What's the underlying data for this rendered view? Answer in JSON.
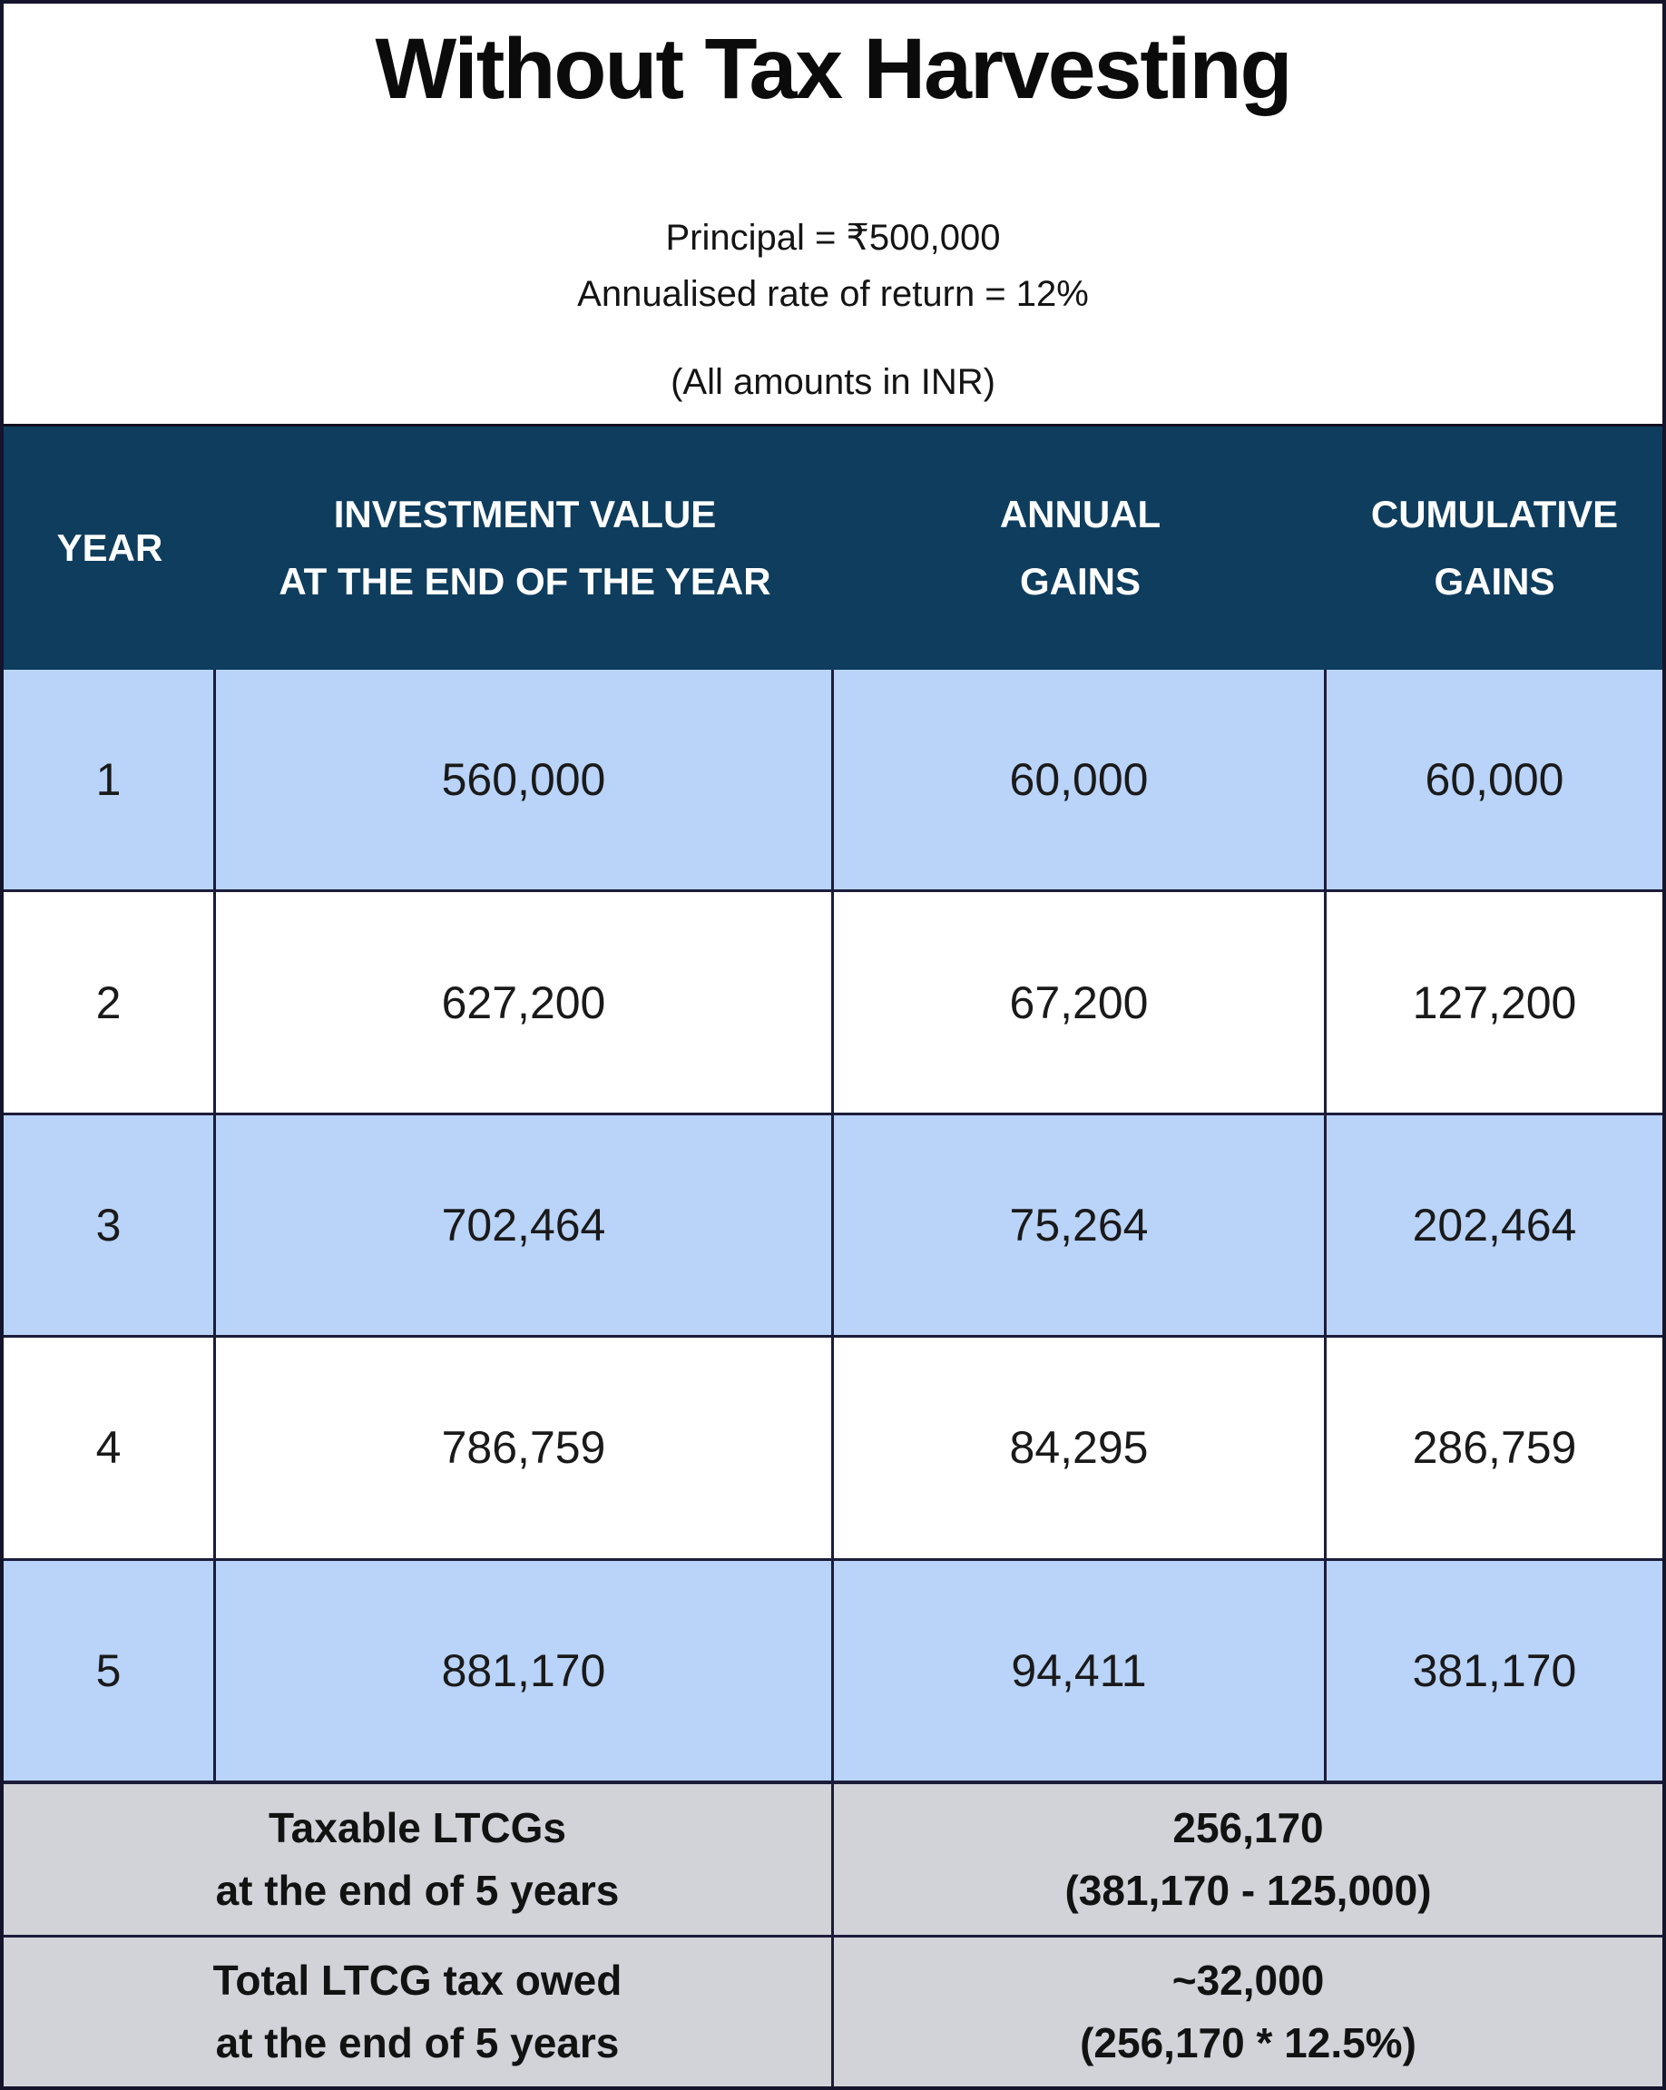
{
  "page": {
    "title": "Without Tax Harvesting",
    "subtitle_line1": "Principal = ₹500,000",
    "subtitle_line2": "Annualised rate of return = 12%",
    "note": "(All amounts in INR)"
  },
  "table": {
    "headers": {
      "year": "YEAR",
      "investment_line1": "INVESTMENT VALUE",
      "investment_line2": "AT THE END OF THE YEAR",
      "annual_line1": "ANNUAL",
      "annual_line2": "GAINS",
      "cumulative_line1": "CUMULATIVE",
      "cumulative_line2": "GAINS"
    },
    "rows": [
      {
        "year": "1",
        "investment": "560,000",
        "annual": "60,000",
        "cumulative": "60,000"
      },
      {
        "year": "2",
        "investment": "627,200",
        "annual": "67,200",
        "cumulative": "127,200"
      },
      {
        "year": "3",
        "investment": "702,464",
        "annual": "75,264",
        "cumulative": "202,464"
      },
      {
        "year": "4",
        "investment": "786,759",
        "annual": "84,295",
        "cumulative": "286,759"
      },
      {
        "year": "5",
        "investment": "881,170",
        "annual": "94,411",
        "cumulative": "381,170"
      }
    ],
    "summary": [
      {
        "label_line1": "Taxable LTCGs",
        "label_line2": "at the end of 5 years",
        "value_line1": "256,170",
        "value_line2": "(381,170 - 125,000)"
      },
      {
        "label_line1": "Total LTCG tax owed",
        "label_line2": "at the end of 5 years",
        "value_line1": "~32,000",
        "value_line2": "(256,170 * 12.5%)"
      }
    ]
  },
  "colors": {
    "header_bg": "#0e3d5e",
    "row_shade": "#b9d3f9",
    "summary_bg": "#d1d3d9",
    "grid_line": "#1c1c3a"
  },
  "chart_data": {
    "type": "table",
    "title": "Without Tax Harvesting",
    "annotations": [
      "Principal = ₹500,000",
      "Annualised rate of return = 12%",
      "(All amounts in INR)"
    ],
    "columns": [
      "YEAR",
      "INVESTMENT VALUE AT THE END OF THE YEAR",
      "ANNUAL GAINS",
      "CUMULATIVE GAINS"
    ],
    "rows": [
      [
        1,
        560000,
        60000,
        60000
      ],
      [
        2,
        627200,
        67200,
        127200
      ],
      [
        3,
        702464,
        75264,
        202464
      ],
      [
        4,
        786759,
        84295,
        286759
      ],
      [
        5,
        881170,
        94411,
        381170
      ]
    ],
    "summary_rows": [
      {
        "label": "Taxable LTCGs at the end of 5 years",
        "value": 256170,
        "formula": "381,170 - 125,000"
      },
      {
        "label": "Total LTCG tax owed at the end of 5 years",
        "value": "~32,000",
        "formula": "256,170 * 12.5%"
      }
    ]
  }
}
